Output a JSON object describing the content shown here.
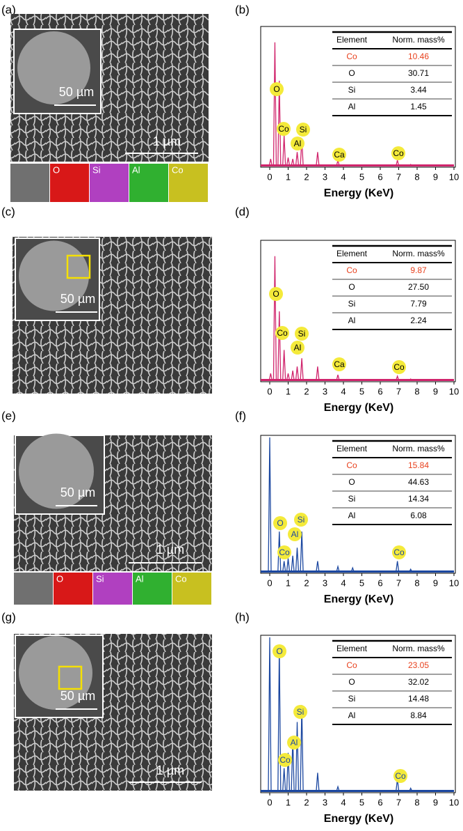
{
  "panels": [
    {
      "label": "(a)",
      "scale_inset": "50 µm",
      "scale_main": "1 µm",
      "maps": [
        "O",
        "Si",
        "Al",
        "Co"
      ]
    },
    {
      "label": "(b)",
      "table": {
        "header": [
          "Element",
          "Norm. mass%"
        ],
        "rows": [
          [
            "Co",
            "10.46"
          ],
          [
            "O",
            "30.71"
          ],
          [
            "Si",
            "3.44"
          ],
          [
            "Al",
            "1.45"
          ]
        ]
      },
      "peaks": [
        "O",
        "Co",
        "Si",
        "Al",
        "Ca",
        "Co"
      ],
      "xticks": [
        "0",
        "1",
        "2",
        "3",
        "4",
        "5",
        "6",
        "7",
        "8",
        "9",
        "10"
      ],
      "xlabel": "Energy (KeV)"
    },
    {
      "label": "(c)",
      "scale_inset": "50 µm"
    },
    {
      "label": "(d)",
      "table": {
        "header": [
          "Element",
          "Norm. mass%"
        ],
        "rows": [
          [
            "Co",
            "9.87"
          ],
          [
            "O",
            "27.50"
          ],
          [
            "Si",
            "7.79"
          ],
          [
            "Al",
            "2.24"
          ]
        ]
      },
      "peaks": [
        "O",
        "Co",
        "Si",
        "Al",
        "Ca",
        "Co"
      ],
      "xticks": [
        "0",
        "1",
        "2",
        "3",
        "4",
        "5",
        "6",
        "7",
        "8",
        "9",
        "10"
      ],
      "xlabel": "Energy (KeV)"
    },
    {
      "label": "(e)",
      "scale_inset": "50 µm",
      "scale_main": "1 µm",
      "maps": [
        "O",
        "Si",
        "Al",
        "Co"
      ]
    },
    {
      "label": "(f)",
      "table": {
        "header": [
          "Element",
          "Norm. mass%"
        ],
        "rows": [
          [
            "Co",
            "15.84"
          ],
          [
            "O",
            "44.63"
          ],
          [
            "Si",
            "14.34"
          ],
          [
            "Al",
            "6.08"
          ]
        ]
      },
      "peaks": [
        "O",
        "Co",
        "Si",
        "Al",
        "Co"
      ],
      "xticks": [
        "0",
        "1",
        "2",
        "3",
        "4",
        "5",
        "6",
        "7",
        "8",
        "9",
        "10"
      ],
      "xlabel": "Energy (KeV)"
    },
    {
      "label": "(g)",
      "scale_inset": "50 µm",
      "scale_main": "1 µm"
    },
    {
      "label": "(h)",
      "table": {
        "header": [
          "Element",
          "Norm. mass%"
        ],
        "rows": [
          [
            "Co",
            "23.05"
          ],
          [
            "O",
            "32.02"
          ],
          [
            "Si",
            "14.48"
          ],
          [
            "Al",
            "8.84"
          ]
        ]
      },
      "peaks": [
        "O",
        "Si",
        "Al",
        "Co",
        "Co"
      ],
      "xticks": [
        "0",
        "1",
        "2",
        "3",
        "4",
        "5",
        "6",
        "7",
        "8",
        "9",
        "10"
      ],
      "xlabel": "Energy (KeV)"
    }
  ]
}
